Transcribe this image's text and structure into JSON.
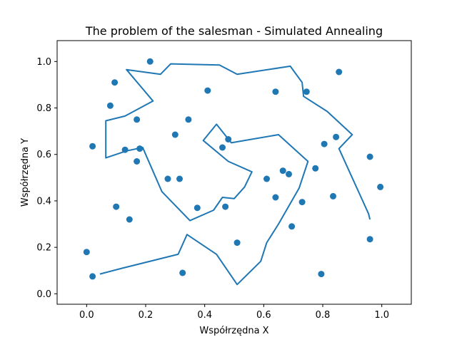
{
  "chart_data": {
    "type": "scatter",
    "title": "The problem of the salesman - Simulated Annealing",
    "xlabel": "Współrzędna X",
    "ylabel": "Współrzędna Y",
    "xlim": [
      -0.1,
      1.1
    ],
    "ylim": [
      -0.045,
      1.09
    ],
    "xticks": [
      "0.0",
      "0.2",
      "0.4",
      "0.6",
      "0.8",
      "1.0"
    ],
    "yticks": [
      "0.0",
      "0.2",
      "0.4",
      "0.6",
      "0.8",
      "1.0"
    ],
    "grid": false,
    "color": "#1f77b4",
    "points": [
      [
        0.0,
        0.18
      ],
      [
        0.02,
        0.075
      ],
      [
        0.02,
        0.635
      ],
      [
        0.08,
        0.81
      ],
      [
        0.095,
        0.91
      ],
      [
        0.1,
        0.375
      ],
      [
        0.13,
        0.62
      ],
      [
        0.145,
        0.32
      ],
      [
        0.17,
        0.57
      ],
      [
        0.17,
        0.75
      ],
      [
        0.18,
        0.625
      ],
      [
        0.215,
        1.0
      ],
      [
        0.275,
        0.495
      ],
      [
        0.3,
        0.685
      ],
      [
        0.315,
        0.495
      ],
      [
        0.325,
        0.09
      ],
      [
        0.345,
        0.75
      ],
      [
        0.375,
        0.37
      ],
      [
        0.41,
        0.875
      ],
      [
        0.46,
        0.63
      ],
      [
        0.47,
        0.375
      ],
      [
        0.48,
        0.665
      ],
      [
        0.51,
        0.22
      ],
      [
        0.61,
        0.495
      ],
      [
        0.64,
        0.415
      ],
      [
        0.64,
        0.87
      ],
      [
        0.665,
        0.53
      ],
      [
        0.685,
        0.515
      ],
      [
        0.695,
        0.29
      ],
      [
        0.73,
        0.395
      ],
      [
        0.745,
        0.87
      ],
      [
        0.775,
        0.54
      ],
      [
        0.795,
        0.085
      ],
      [
        0.805,
        0.645
      ],
      [
        0.835,
        0.42
      ],
      [
        0.845,
        0.675
      ],
      [
        0.855,
        0.955
      ],
      [
        0.96,
        0.59
      ],
      [
        0.96,
        0.235
      ],
      [
        0.995,
        0.46
      ]
    ],
    "route": [
      [
        0.045,
        0.085
      ],
      [
        0.12,
        0.11
      ],
      [
        0.31,
        0.17
      ],
      [
        0.34,
        0.255
      ],
      [
        0.44,
        0.17
      ],
      [
        0.51,
        0.04
      ],
      [
        0.59,
        0.14
      ],
      [
        0.61,
        0.22
      ],
      [
        0.65,
        0.3
      ],
      [
        0.72,
        0.455
      ],
      [
        0.75,
        0.57
      ],
      [
        0.65,
        0.685
      ],
      [
        0.49,
        0.65
      ],
      [
        0.44,
        0.73
      ],
      [
        0.395,
        0.66
      ],
      [
        0.48,
        0.57
      ],
      [
        0.56,
        0.525
      ],
      [
        0.535,
        0.46
      ],
      [
        0.5,
        0.41
      ],
      [
        0.46,
        0.415
      ],
      [
        0.43,
        0.36
      ],
      [
        0.35,
        0.315
      ],
      [
        0.255,
        0.44
      ],
      [
        0.2,
        0.6
      ],
      [
        0.19,
        0.63
      ],
      [
        0.135,
        0.615
      ],
      [
        0.065,
        0.585
      ],
      [
        0.065,
        0.745
      ],
      [
        0.13,
        0.765
      ],
      [
        0.225,
        0.83
      ],
      [
        0.135,
        0.965
      ],
      [
        0.25,
        0.945
      ],
      [
        0.285,
        0.99
      ],
      [
        0.45,
        0.985
      ],
      [
        0.51,
        0.945
      ],
      [
        0.69,
        0.98
      ],
      [
        0.73,
        0.91
      ],
      [
        0.735,
        0.85
      ],
      [
        0.815,
        0.785
      ],
      [
        0.9,
        0.685
      ],
      [
        0.855,
        0.625
      ],
      [
        0.955,
        0.345
      ],
      [
        0.96,
        0.32
      ]
    ]
  }
}
